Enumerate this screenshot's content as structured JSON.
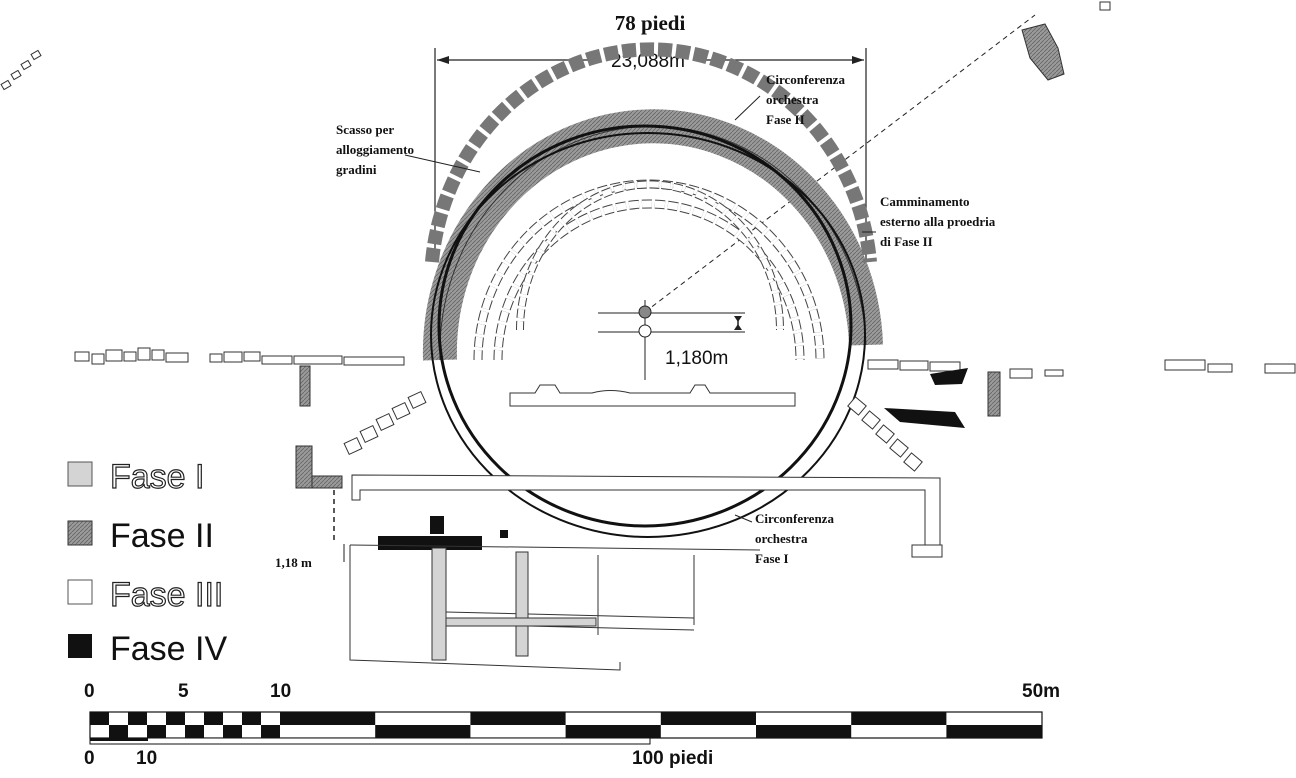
{
  "dimensions": {
    "feet_label": "78 piedi",
    "meters_label": "23,088m",
    "offset_label": "1,180m",
    "small_offset_label": "1,18 m"
  },
  "annotations": {
    "orchestra_phase2": [
      "Circonferenza",
      "orchestra",
      "Fase II"
    ],
    "scasso": [
      "Scasso per",
      "alloggiamento",
      "gradini"
    ],
    "camminamento": [
      "Camminamento",
      "esterno alla proedria",
      "di Fase II"
    ],
    "orchestra_phase1": [
      "Circonferenza",
      "orchestra",
      "Fase I"
    ]
  },
  "legend": [
    {
      "label": "Fase I",
      "fill": "#d4d4d4",
      "style": "outline"
    },
    {
      "label": "Fase II",
      "fill": "#8a8a8a",
      "style": "bold"
    },
    {
      "label": "Fase III",
      "fill": "#ffffff",
      "style": "outline"
    },
    {
      "label": "Fase IV",
      "fill": "#111111",
      "style": "bold"
    }
  ],
  "scale": {
    "meter_ticks": [
      "0",
      "5",
      "10"
    ],
    "meter_end": "50m",
    "feet_ticks": [
      "0",
      "10"
    ],
    "feet_end": "100 piedi"
  },
  "colors": {
    "fase1": "#d4d4d4",
    "fase2": "#8a8a8a",
    "fase3": "#ffffff",
    "fase4": "#111111",
    "line": "#222222"
  }
}
